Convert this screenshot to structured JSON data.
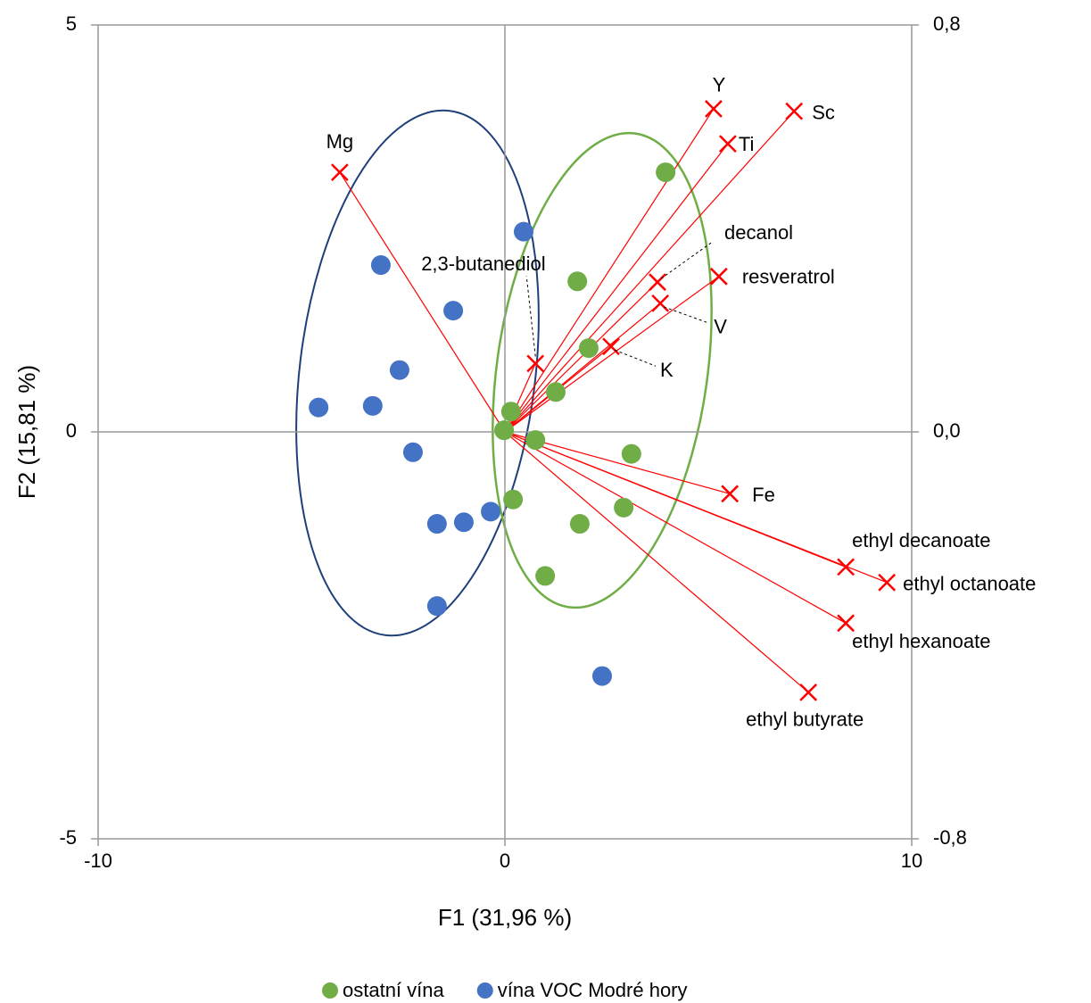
{
  "chart_data": {
    "type": "scatter",
    "x_label": "F1 (31,96 %)",
    "y_label": "F2 (15,81 %)",
    "xlim": [
      -10,
      10
    ],
    "xticks": [
      -10,
      0,
      10
    ],
    "ylim": [
      -5,
      5
    ],
    "yticks": [
      -5,
      0,
      5
    ],
    "y2lim": [
      -0.8,
      0.8
    ],
    "y2ticks": [
      {
        "value": -0.8,
        "label": "-0,8"
      },
      {
        "value": 0,
        "label": "0,0"
      },
      {
        "value": 0.8,
        "label": "0,8"
      }
    ],
    "series": [
      {
        "name": "ostatní vína",
        "color": "#70ad47",
        "x": [
          3.95,
          1.78,
          2.06,
          1.25,
          0.15,
          -0.02,
          0.75,
          3.11,
          0.2,
          1.84,
          2.92,
          0.99
        ],
        "values": [
          3.19,
          1.85,
          1.03,
          0.49,
          0.25,
          0.02,
          -0.1,
          -0.27,
          -0.83,
          -1.13,
          -0.93,
          -1.77
        ]
      },
      {
        "name": "vína VOC Modré hory",
        "color": "#4472c4",
        "x": [
          0.46,
          -3.05,
          -1.27,
          -2.59,
          -4.58,
          -3.25,
          -2.26,
          -1.67,
          -1.01,
          -0.35,
          -1.67,
          2.39
        ],
        "values": [
          2.46,
          2.05,
          1.49,
          0.76,
          0.3,
          0.32,
          -0.25,
          -1.13,
          -1.11,
          -0.98,
          -2.14,
          -3.0
        ]
      }
    ],
    "vectors": {
      "color": "#ff0000",
      "labels": [
        "Mg",
        "Y",
        "Sc",
        "Ti",
        "decanol",
        "resveratrol",
        "V",
        "K",
        "2,3-butanediol",
        "Fe",
        "ethyl decanoate",
        "ethyl octanoate",
        "ethyl hexanoate",
        "ethyl butyrate"
      ],
      "x": [
        -4.06,
        5.13,
        7.11,
        5.48,
        3.75,
        5.26,
        3.82,
        2.61,
        0.75,
        5.53,
        8.38,
        9.39,
        8.38,
        7.46
      ],
      "y": [
        3.19,
        3.97,
        3.94,
        3.54,
        1.84,
        1.91,
        1.58,
        1.05,
        0.84,
        -0.76,
        -1.66,
        -1.85,
        -2.35,
        -3.2
      ]
    }
  }
}
